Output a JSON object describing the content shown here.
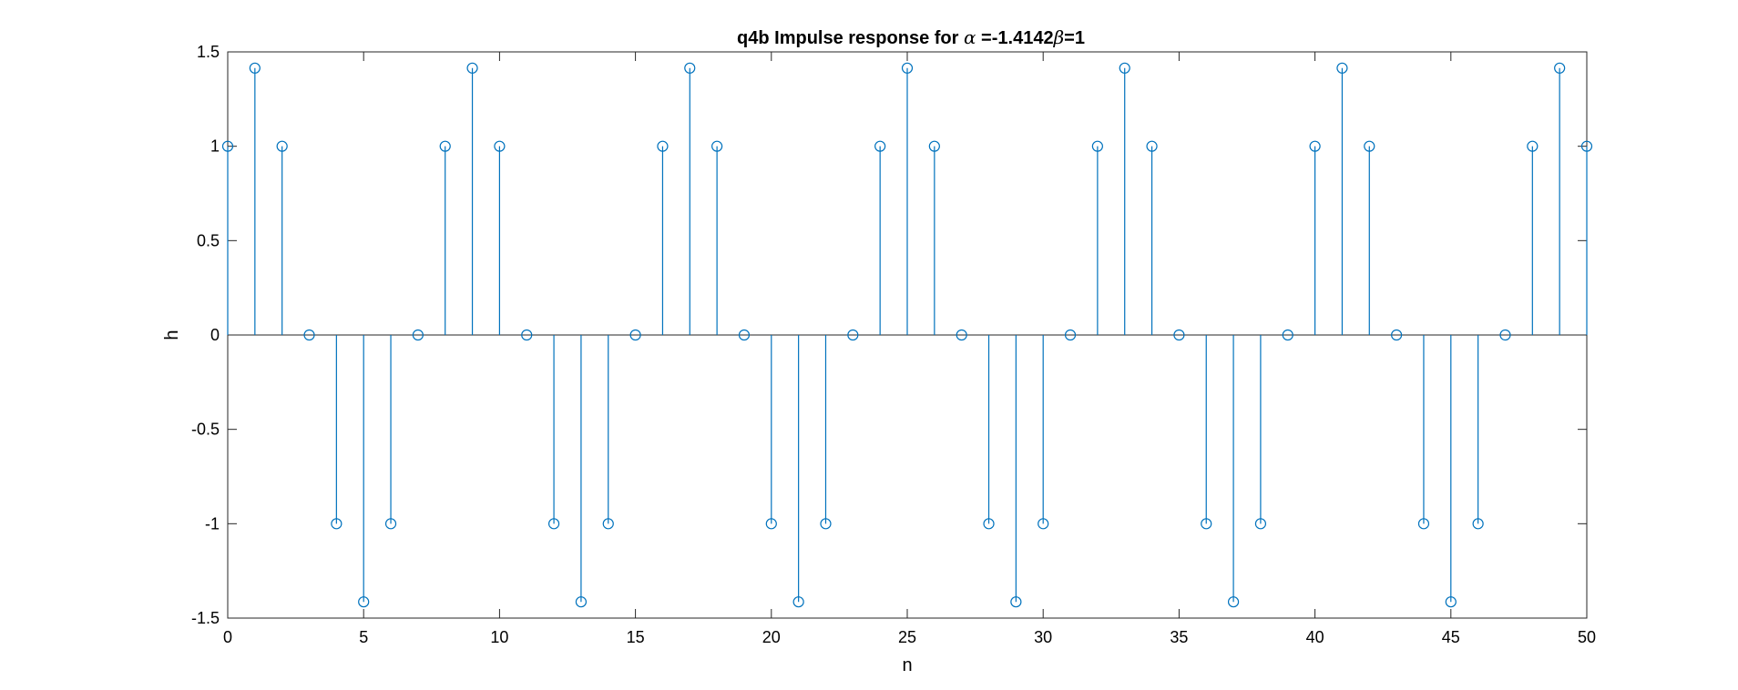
{
  "chart_data": {
    "type": "stem",
    "title": {
      "prefix": "q4b Impulse response for ",
      "alpha_symbol": "α",
      "alpha_text": " =-1.4142",
      "beta_symbol": "β",
      "beta_text": "=1"
    },
    "xlabel": "n",
    "ylabel": "h",
    "xlim": [
      0,
      50
    ],
    "ylim": [
      -1.5,
      1.5
    ],
    "xticks": [
      0,
      5,
      10,
      15,
      20,
      25,
      30,
      35,
      40,
      45,
      50
    ],
    "xtick_labels": [
      "0",
      "5",
      "10",
      "15",
      "20",
      "25",
      "30",
      "35",
      "40",
      "45",
      "50"
    ],
    "yticks": [
      -1.5,
      -1,
      -0.5,
      0,
      0.5,
      1,
      1.5
    ],
    "ytick_labels": [
      "-1.5",
      "-1",
      "-0.5",
      "0",
      "0.5",
      "1",
      "1.5"
    ],
    "grid": false,
    "series_color": "#0072BD",
    "x": [
      0,
      1,
      2,
      3,
      4,
      5,
      6,
      7,
      8,
      9,
      10,
      11,
      12,
      13,
      14,
      15,
      16,
      17,
      18,
      19,
      20,
      21,
      22,
      23,
      24,
      25,
      26,
      27,
      28,
      29,
      30,
      31,
      32,
      33,
      34,
      35,
      36,
      37,
      38,
      39,
      40,
      41,
      42,
      43,
      44,
      45,
      46,
      47,
      48,
      49,
      50
    ],
    "y": [
      1,
      1.4142,
      1,
      0,
      -1,
      -1.4142,
      -1,
      0,
      1,
      1.4142,
      1,
      0,
      -1,
      -1.4142,
      -1,
      0,
      1,
      1.4142,
      1,
      0,
      -1,
      -1.4142,
      -1,
      0,
      1,
      1.4142,
      1,
      0,
      -1,
      -1.4142,
      -1,
      0,
      1,
      1.4142,
      1,
      0,
      -1,
      -1.4142,
      -1,
      0,
      1,
      1.4142,
      1,
      0,
      -1,
      -1.4142,
      -1,
      0,
      1,
      1.4142,
      1
    ]
  }
}
